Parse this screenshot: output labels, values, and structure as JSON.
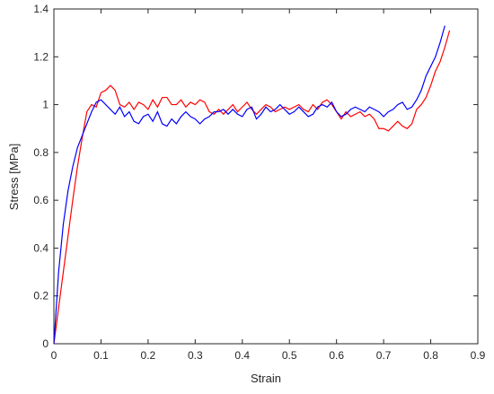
{
  "chart_data": {
    "type": "line",
    "xlabel": "Strain",
    "ylabel": "Stress [MPa]",
    "x": [
      0,
      0.01,
      0.02,
      0.03,
      0.04,
      0.05,
      0.06,
      0.07,
      0.08,
      0.09,
      0.1,
      0.11,
      0.12,
      0.13,
      0.14,
      0.15,
      0.16,
      0.17,
      0.18,
      0.19,
      0.2,
      0.21,
      0.22,
      0.23,
      0.24,
      0.25,
      0.26,
      0.27,
      0.28,
      0.29,
      0.3,
      0.31,
      0.32,
      0.33,
      0.34,
      0.35,
      0.36,
      0.37,
      0.38,
      0.39,
      0.4,
      0.41,
      0.42,
      0.43,
      0.44,
      0.45,
      0.46,
      0.47,
      0.48,
      0.49,
      0.5,
      0.51,
      0.52,
      0.53,
      0.54,
      0.55,
      0.56,
      0.57,
      0.58,
      0.59,
      0.6,
      0.61,
      0.62,
      0.63,
      0.64,
      0.65,
      0.66,
      0.67,
      0.68,
      0.69,
      0.7,
      0.71,
      0.72,
      0.73,
      0.74,
      0.75,
      0.76,
      0.77,
      0.78,
      0.79,
      0.8,
      0.81,
      0.82,
      0.83,
      0.84
    ],
    "series": [
      {
        "color": "#ff0000",
        "values": [
          0,
          0.15,
          0.3,
          0.45,
          0.6,
          0.74,
          0.86,
          0.97,
          1.0,
          0.99,
          1.05,
          1.06,
          1.08,
          1.06,
          1.0,
          0.99,
          1.01,
          0.98,
          1.01,
          1.0,
          0.98,
          1.02,
          0.99,
          1.03,
          1.03,
          1.0,
          1.0,
          1.02,
          0.99,
          1.01,
          1.0,
          1.02,
          1.01,
          0.97,
          0.96,
          0.98,
          0.96,
          0.98,
          1.0,
          0.97,
          0.99,
          1.01,
          0.98,
          0.96,
          0.98,
          1.0,
          0.99,
          0.97,
          0.98,
          0.99,
          0.98,
          0.99,
          1.0,
          0.98,
          0.97,
          1.0,
          0.98,
          1.01,
          1.02,
          1.0,
          0.97,
          0.94,
          0.97,
          0.95,
          0.96,
          0.97,
          0.95,
          0.96,
          0.94,
          0.9,
          0.9,
          0.89,
          0.91,
          0.93,
          0.91,
          0.9,
          0.92,
          0.98,
          1.0,
          1.03,
          1.08,
          1.14,
          1.18,
          1.24,
          1.31
        ]
      },
      {
        "color": "#0000ff",
        "values": [
          0,
          0.3,
          0.5,
          0.64,
          0.74,
          0.82,
          0.87,
          0.92,
          0.97,
          1.01,
          1.02,
          1.0,
          0.98,
          0.96,
          0.99,
          0.95,
          0.97,
          0.93,
          0.92,
          0.95,
          0.96,
          0.93,
          0.97,
          0.92,
          0.91,
          0.94,
          0.92,
          0.95,
          0.97,
          0.95,
          0.94,
          0.92,
          0.94,
          0.95,
          0.97,
          0.97,
          0.98,
          0.96,
          0.98,
          0.96,
          0.95,
          0.98,
          0.99,
          0.94,
          0.96,
          0.99,
          0.97,
          0.98,
          1.0,
          0.98,
          0.96,
          0.97,
          0.99,
          0.97,
          0.95,
          0.96,
          0.99,
          1.0,
          0.99,
          1.01,
          0.97,
          0.95,
          0.96,
          0.98,
          0.99,
          0.98,
          0.97,
          0.99,
          0.98,
          0.97,
          0.95,
          0.97,
          0.98,
          1.0,
          1.01,
          0.98,
          0.99,
          1.02,
          1.06,
          1.12,
          1.16,
          1.2,
          1.26,
          1.33,
          null
        ]
      }
    ],
    "xlim": [
      0,
      0.9
    ],
    "xticks": [
      0,
      0.1,
      0.2,
      0.3,
      0.4,
      0.5,
      0.6,
      0.7,
      0.8,
      0.9
    ],
    "ylim": [
      0,
      1.4
    ],
    "yticks": [
      0,
      0.2,
      0.4,
      0.6,
      0.8,
      1,
      1.2,
      1.4
    ],
    "grid": false
  }
}
